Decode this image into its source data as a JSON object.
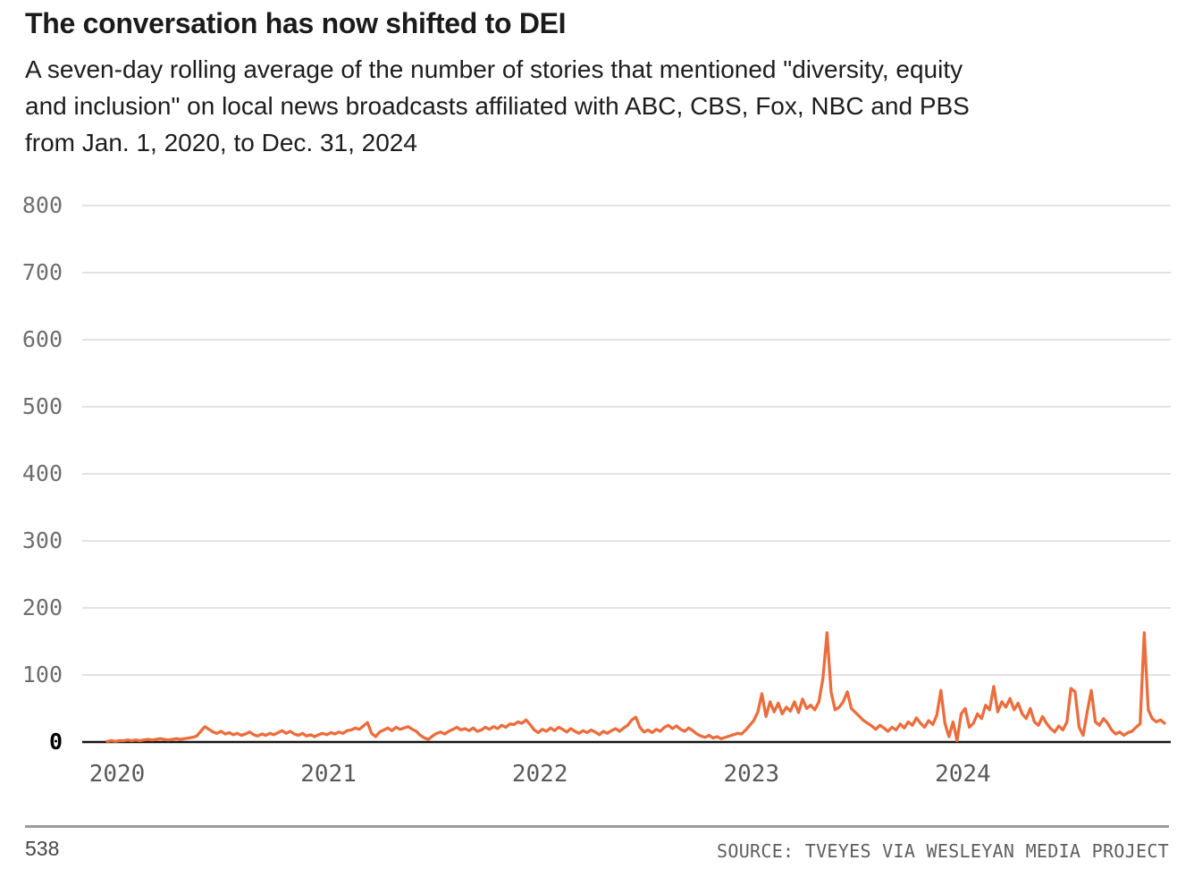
{
  "header": {
    "title": "The conversation has now shifted to DEI",
    "subtitle_lines": [
      "A seven-day rolling average of the number of stories that mentioned \"diversity, equity",
      "and inclusion\" on local news broadcasts affiliated with ABC, CBS, Fox, NBC and PBS",
      "from Jan. 1, 2020, to Dec. 31, 2024"
    ]
  },
  "footer": {
    "brand": "538",
    "source": "SOURCE: TVEYES VIA WESLEYAN MEDIA PROJECT"
  },
  "colors": {
    "line": "#ec6c3b",
    "gridline": "#d8d8d8",
    "zero_axis": "#141414"
  },
  "chart_data": {
    "type": "line",
    "title": "The conversation has now shifted to DEI",
    "subtitle": "A seven-day rolling average of the number of stories that mentioned \"diversity, equity and inclusion\" on local news broadcasts affiliated with ABC, CBS, Fox, NBC and PBS from Jan. 1, 2020, to Dec. 31, 2024",
    "xlabel": "",
    "ylabel": "",
    "x_start": "2020-01-01",
    "x_end": "2024-12-31",
    "x_interval": "weekly",
    "x_tick_labels": [
      "2020",
      "2021",
      "2022",
      "2023",
      "2024"
    ],
    "y_ticks": [
      0,
      100,
      200,
      300,
      400,
      500,
      600,
      700,
      800
    ],
    "ylim": [
      0,
      800
    ],
    "grid": "horizontal",
    "legend": "none",
    "series": [
      {
        "name": "Stories mentioning DEI (7-day rolling average)",
        "color": "#ec6c3b",
        "values": [
          1,
          2,
          1,
          2,
          2,
          3,
          2,
          3,
          2,
          3,
          4,
          3,
          4,
          5,
          4,
          3,
          4,
          5,
          4,
          5,
          6,
          7,
          9,
          16,
          23,
          19,
          15,
          13,
          16,
          12,
          14,
          11,
          13,
          10,
          12,
          15,
          11,
          9,
          12,
          10,
          13,
          11,
          14,
          17,
          13,
          16,
          12,
          10,
          13,
          9,
          11,
          8,
          11,
          13,
          11,
          14,
          12,
          15,
          13,
          17,
          18,
          21,
          19,
          24,
          29,
          13,
          8,
          15,
          18,
          21,
          17,
          22,
          19,
          21,
          23,
          19,
          16,
          10,
          6,
          4,
          9,
          13,
          15,
          12,
          16,
          19,
          22,
          18,
          20,
          17,
          21,
          16,
          18,
          22,
          19,
          23,
          20,
          25,
          22,
          27,
          26,
          30,
          28,
          33,
          26,
          18,
          14,
          19,
          16,
          21,
          17,
          22,
          19,
          15,
          20,
          16,
          13,
          17,
          14,
          18,
          15,
          11,
          16,
          13,
          17,
          20,
          16,
          21,
          25,
          33,
          37,
          22,
          15,
          18,
          14,
          19,
          16,
          22,
          25,
          20,
          24,
          19,
          16,
          21,
          17,
          12,
          9,
          7,
          10,
          6,
          8,
          5,
          7,
          9,
          11,
          13,
          12,
          18,
          25,
          32,
          45,
          72,
          38,
          60,
          45,
          58,
          42,
          52,
          46,
          60,
          44,
          64,
          50,
          55,
          48,
          60,
          95,
          163,
          75,
          48,
          52,
          60,
          75,
          50,
          44,
          38,
          32,
          28,
          24,
          19,
          25,
          21,
          16,
          22,
          18,
          27,
          21,
          30,
          25,
          36,
          28,
          22,
          32,
          26,
          40,
          77,
          28,
          8,
          30,
          2,
          42,
          50,
          22,
          28,
          42,
          35,
          55,
          48,
          83,
          45,
          60,
          52,
          65,
          48,
          58,
          42,
          35,
          50,
          30,
          25,
          38,
          28,
          20,
          15,
          24,
          18,
          30,
          80,
          75,
          22,
          10,
          45,
          77,
          30,
          25,
          35,
          28,
          18,
          12,
          15,
          10,
          14,
          16,
          22,
          27,
          163,
          48,
          35,
          30,
          33,
          28
        ]
      }
    ]
  }
}
